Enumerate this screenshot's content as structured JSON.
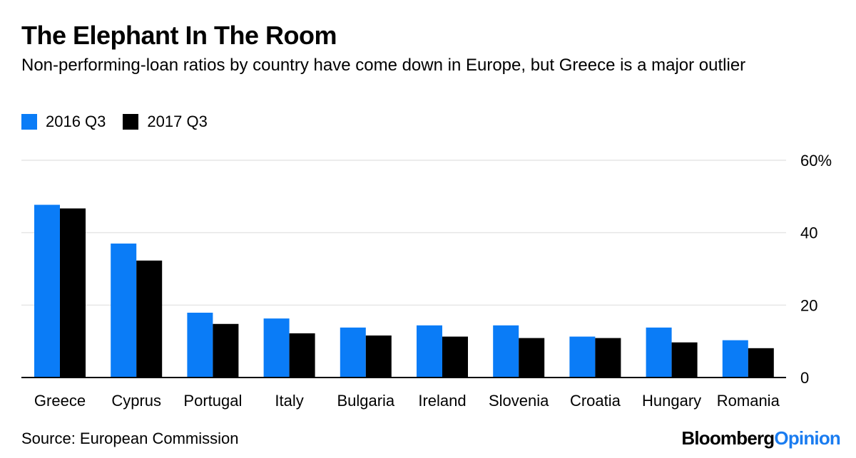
{
  "header": {
    "title": "The Elephant In The Room",
    "subtitle": "Non-performing-loan ratios by country have come down in Europe, but Greece is a major outlier"
  },
  "legend": {
    "items": [
      {
        "label": "2016 Q3",
        "color": "#0a7cf7"
      },
      {
        "label": "2017 Q3",
        "color": "#000000"
      }
    ]
  },
  "footer": {
    "source": "Source: European Commission",
    "brand_main": "Bloomberg",
    "brand_accent": "Opinion"
  },
  "chart_data": {
    "type": "bar",
    "title": "The Elephant In The Room",
    "xlabel": "",
    "ylabel": "",
    "ylim": [
      0,
      60
    ],
    "yticks": [
      0,
      20,
      40,
      60
    ],
    "ytick_labels": [
      "0",
      "20",
      "40",
      "60%"
    ],
    "grid": true,
    "legend_position": "top-left",
    "categories": [
      "Greece",
      "Cyprus",
      "Portugal",
      "Italy",
      "Bulgaria",
      "Ireland",
      "Slovenia",
      "Croatia",
      "Hungary",
      "Romania"
    ],
    "series": [
      {
        "name": "2016 Q3",
        "color": "#0a7cf7",
        "values": [
          47.7,
          37.0,
          17.9,
          16.3,
          13.8,
          14.4,
          14.4,
          11.3,
          13.8,
          10.3
        ]
      },
      {
        "name": "2017 Q3",
        "color": "#000000",
        "values": [
          46.7,
          32.3,
          14.8,
          12.2,
          11.6,
          11.3,
          10.9,
          10.9,
          9.7,
          8.1
        ]
      }
    ]
  }
}
